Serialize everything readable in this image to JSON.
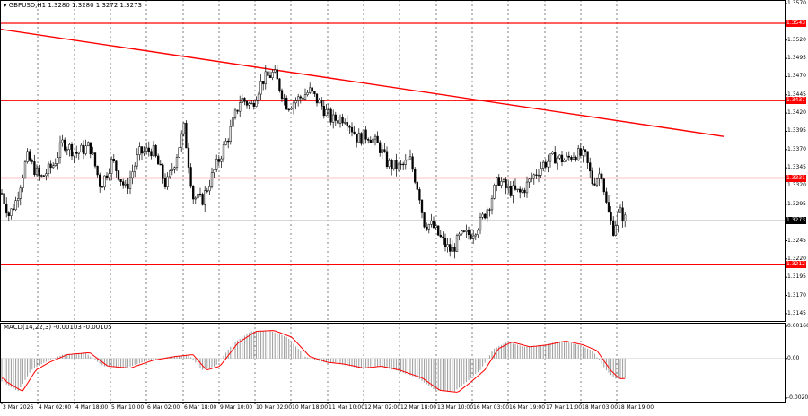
{
  "chart_header": {
    "symbol": "GBPUSD,H1",
    "ohlc": "1.3280 1.3280 1.3272 1.3273"
  },
  "macd_header": {
    "label": "MACD(14,22,3) -0.00103 -0.00105"
  },
  "price_scale": [
    "1.3570",
    "1.3520",
    "1.3495",
    "1.3470",
    "1.3445",
    "1.3420",
    "1.3395",
    "1.3370",
    "1.3345",
    "1.3320",
    "1.3295",
    "1.3245",
    "1.3220",
    "1.3195",
    "1.3170",
    "1.3145"
  ],
  "level_tags": [
    {
      "value": "1.3543",
      "color": "#ff0000"
    },
    {
      "value": "1.3437",
      "color": "#ff0000"
    },
    {
      "value": "1.3331",
      "color": "#ff0000"
    },
    {
      "value": "1.3212",
      "color": "#ff0000"
    }
  ],
  "current_price_tag": {
    "value": "1.3273",
    "color": "#000000"
  },
  "macd_scale": [
    "0.00166",
    "0.00",
    "-0.00205"
  ],
  "time_axis": [
    "3 Mar 2026",
    "4 Mar 02:00",
    "4 Mar 18:00",
    "5 Mar 10:00",
    "6 Mar 02:00",
    "6 Mar 18:00",
    "9 Mar 10:00",
    "10 Mar 02:00",
    "10 Mar 18:00",
    "11 Mar 10:00",
    "12 Mar 02:00",
    "12 Mar 18:00",
    "13 Mar 10:00",
    "16 Mar 03:00",
    "16 Mar 19:00",
    "17 Mar 11:00",
    "18 Mar 03:00",
    "18 Mar 19:00"
  ],
  "chart_data": {
    "type": "candlestick",
    "y_range": [
      1.3135,
      1.3575
    ],
    "horizontal_levels": [
      1.3543,
      1.3437,
      1.3331,
      1.3212
    ],
    "trendline": {
      "from": 1.3535,
      "to": 1.3388
    },
    "current_price": 1.3273,
    "macd": {
      "params": "14,22,3",
      "value": -0.00103,
      "signal": -0.00105,
      "y_range": [
        -0.00205,
        0.00166
      ]
    },
    "series_colors": {
      "candles": "#000000",
      "levels": "#ff0000",
      "macd_histogram": "#9a9a9a",
      "macd_signal": "#ff0000"
    }
  }
}
